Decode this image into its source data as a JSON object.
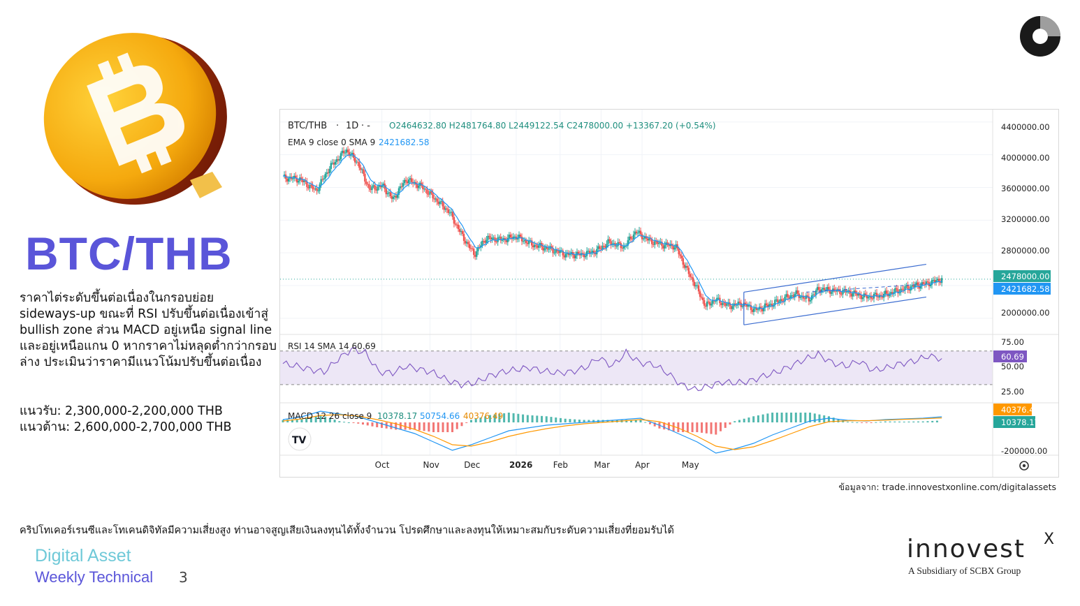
{
  "pair_title": "BTC/THB",
  "description": "ราคาไต่ระดับขึ้นต่อเนื่องในกรอบย่อย sideways-up ขณะที่ RSI ปรับขึ้นต่อเนื่องเข้าสู่ bullish zone ส่วน MACD อยู่เหนือ signal line และอยู่เหนือแกน 0 หากราคาไม่หลุดต่ำกว่ากรอบล่าง ประเมินว่าราคามีแนวโน้มปรับขึ้นต่อเนื่อง",
  "support": "แนวรับ: 2,300,000-2,200,000 THB",
  "resistance": "แนวต้าน: 2,600,000-2,700,000 THB",
  "source": "ข้อมูลจาก: trade.innovestxonline.com/digitalassets",
  "disclaimer": "คริปโทเคอร์เรนซีและโทเคนดิจิทัลมีความเสี่ยงสูง ท่านอาจสูญเสียเงินลงทุนได้ทั้งจำนวน โปรดศึกษาและลงทุนให้เหมาะสมกับระดับความเสี่ยงที่ยอมรับได้",
  "footer": {
    "line1": "Digital Asset",
    "line2": "Weekly Technical",
    "page": "3"
  },
  "brand": {
    "name": "innovest",
    "superscript": "X",
    "tagline": "A Subsidiary of SCBX Group"
  },
  "colors": {
    "accent": "#5a55d9",
    "teal": "#6fc9d8",
    "up": "#26a69a",
    "down": "#ef5350",
    "ema": "#2196f3",
    "channel": "#3a6bd0",
    "rsi": "#7e57c2",
    "macd": "#2196f3",
    "signal": "#ff9800"
  },
  "icons": [
    "bitcoin-coin-icon",
    "brand-logo-icon",
    "tradingview-icon",
    "gear-icon"
  ],
  "chart_data": {
    "type": "candlestick",
    "header": {
      "symbol": "BTC/THB",
      "interval": "1D",
      "ohlc": "O2464632.80 H2481764.80 L2449122.54 C2478000.00 +13367.20 (+0.54%)",
      "ema_label": "EMA 9 close 0 SMA 9",
      "ema_value": "2421682.58"
    },
    "x_labels": [
      "Oct",
      "Nov",
      "Dec",
      "2026",
      "Feb",
      "Mar",
      "Apr",
      "May"
    ],
    "y_ticks": [
      "4400000.00",
      "4000000.00",
      "3600000.00",
      "3200000.00",
      "2800000.00",
      "2000000.00"
    ],
    "ylim": [
      1820000,
      4500000
    ],
    "last_price": "2478000.00",
    "ema_last": "2421682.58",
    "price_path": [
      {
        "d": 0,
        "p": 3720000
      },
      {
        "d": 10,
        "p": 3700000
      },
      {
        "d": 20,
        "p": 3560000
      },
      {
        "d": 28,
        "p": 3840000
      },
      {
        "d": 38,
        "p": 4060000
      },
      {
        "d": 45,
        "p": 3900000
      },
      {
        "d": 52,
        "p": 3580000
      },
      {
        "d": 60,
        "p": 3620000
      },
      {
        "d": 66,
        "p": 3450000
      },
      {
        "d": 74,
        "p": 3700000
      },
      {
        "d": 84,
        "p": 3600000
      },
      {
        "d": 92,
        "p": 3450000
      },
      {
        "d": 100,
        "p": 3300000
      },
      {
        "d": 108,
        "p": 3000000
      },
      {
        "d": 115,
        "p": 2780000
      },
      {
        "d": 122,
        "p": 2980000
      },
      {
        "d": 132,
        "p": 2960000
      },
      {
        "d": 140,
        "p": 3000000
      },
      {
        "d": 150,
        "p": 2900000
      },
      {
        "d": 160,
        "p": 2850000
      },
      {
        "d": 170,
        "p": 2780000
      },
      {
        "d": 180,
        "p": 2780000
      },
      {
        "d": 188,
        "p": 2820000
      },
      {
        "d": 196,
        "p": 2930000
      },
      {
        "d": 205,
        "p": 2870000
      },
      {
        "d": 212,
        "p": 3060000
      },
      {
        "d": 220,
        "p": 2950000
      },
      {
        "d": 228,
        "p": 2900000
      },
      {
        "d": 236,
        "p": 2880000
      },
      {
        "d": 242,
        "p": 2620000
      },
      {
        "d": 248,
        "p": 2400000
      },
      {
        "d": 254,
        "p": 2150000
      },
      {
        "d": 260,
        "p": 2230000
      },
      {
        "d": 268,
        "p": 2150000
      },
      {
        "d": 276,
        "p": 2180000
      },
      {
        "d": 284,
        "p": 2100000
      },
      {
        "d": 292,
        "p": 2160000
      },
      {
        "d": 300,
        "p": 2230000
      },
      {
        "d": 308,
        "p": 2300000
      },
      {
        "d": 316,
        "p": 2230000
      },
      {
        "d": 322,
        "p": 2360000
      },
      {
        "d": 330,
        "p": 2340000
      },
      {
        "d": 340,
        "p": 2320000
      },
      {
        "d": 350,
        "p": 2260000
      },
      {
        "d": 360,
        "p": 2280000
      },
      {
        "d": 370,
        "p": 2340000
      },
      {
        "d": 380,
        "p": 2400000
      },
      {
        "d": 388,
        "p": 2430000
      },
      {
        "d": 396,
        "p": 2478000
      }
    ],
    "channel": {
      "upper": [
        [
          256,
          2320000
        ],
        [
          385,
          2660000
        ]
      ],
      "lower": [
        [
          256,
          1920000
        ],
        [
          385,
          2260000
        ]
      ]
    },
    "rsi": {
      "label": "RSI 14 SMA 14 60.69",
      "value": "60.69",
      "ticks": [
        "75.00",
        "50.00",
        "25.00"
      ],
      "upper": 70,
      "lower": 30,
      "series": [
        55,
        52,
        48,
        45,
        60,
        72,
        68,
        45,
        44,
        52,
        48,
        44,
        35,
        30,
        32,
        40,
        45,
        48,
        50,
        46,
        44,
        45,
        50,
        62,
        52,
        68,
        56,
        54,
        44,
        30,
        24,
        28,
        33,
        32,
        34,
        40,
        45,
        52,
        60,
        66,
        56,
        52,
        58,
        47,
        50,
        55,
        58,
        64,
        61
      ]
    },
    "macd": {
      "label": "MACD 12 26 close 9",
      "values": [
        "10378.17",
        "50754.66",
        "40376.49"
      ],
      "value_macd": "10378.17",
      "value_hist": "40376.49",
      "ticks": [
        "-200000.00"
      ],
      "macd_series": [
        20,
        40,
        80,
        60,
        40,
        0,
        -40,
        -80,
        -140,
        -200,
        -160,
        -110,
        -60,
        -40,
        -20,
        -10,
        0,
        10,
        20,
        30,
        -20,
        -80,
        -140,
        -220,
        -190,
        -150,
        -90,
        -40,
        10,
        30,
        15,
        10,
        20,
        25,
        30,
        40
      ],
      "signal_series": [
        10,
        25,
        50,
        55,
        45,
        20,
        -10,
        -50,
        -100,
        -160,
        -170,
        -140,
        -100,
        -70,
        -45,
        -25,
        -10,
        0,
        10,
        20,
        5,
        -40,
        -100,
        -170,
        -195,
        -175,
        -130,
        -80,
        -30,
        5,
        12,
        12,
        16,
        22,
        26,
        32
      ]
    }
  }
}
